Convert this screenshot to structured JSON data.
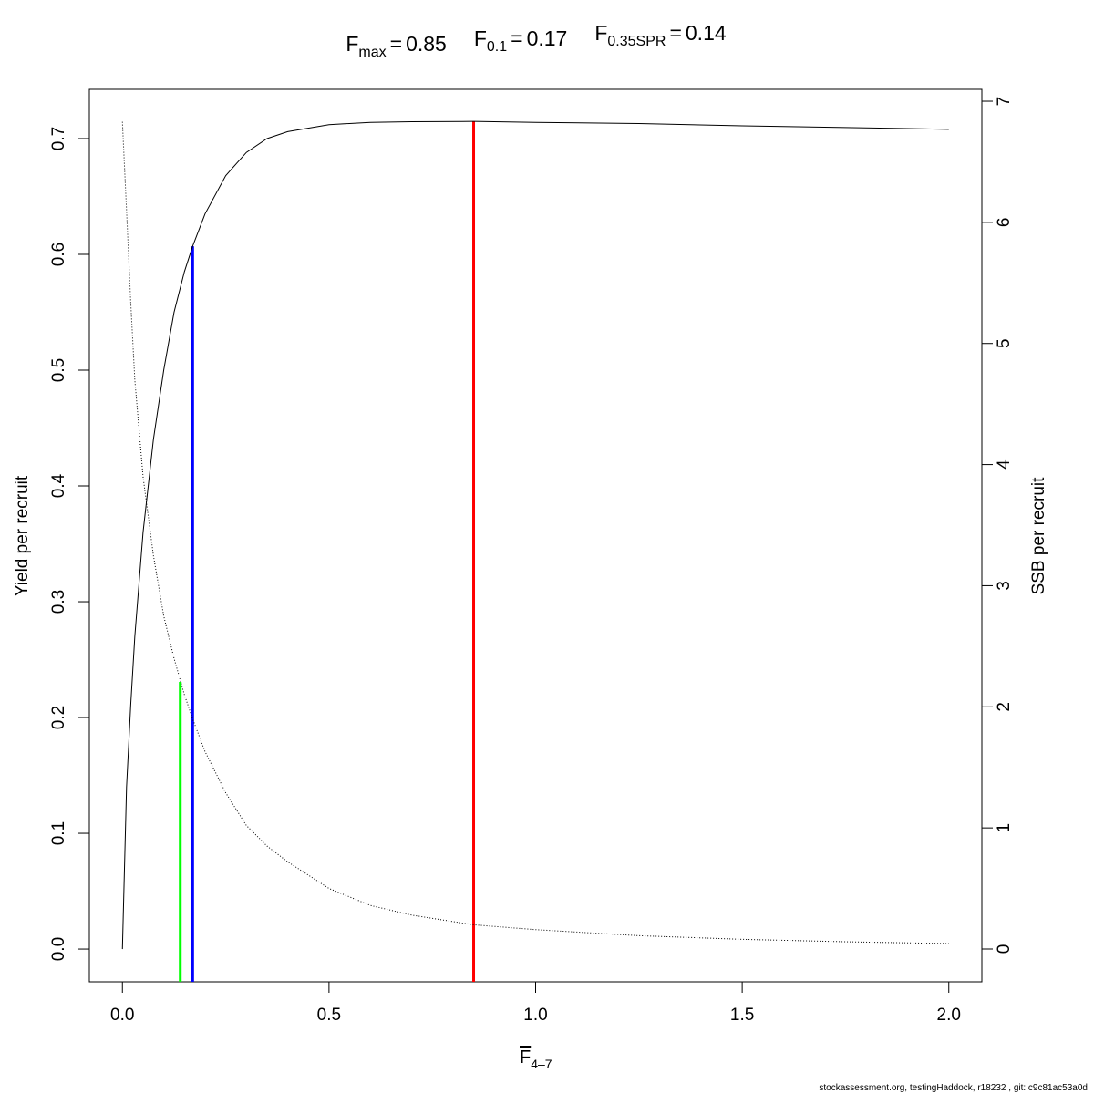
{
  "chart_data": {
    "type": "line",
    "title": [
      {
        "symbol": "F",
        "subscript": "max",
        "relation": "=",
        "value": 0.85,
        "y": 0.7148,
        "color": "#ff0000"
      },
      {
        "symbol": "F",
        "subscript": "0.1",
        "relation": "=",
        "value": 0.17,
        "y": 0.607,
        "color": "#0000ff"
      },
      {
        "symbol": "F",
        "subscript": "0.35SPR",
        "relation": "=",
        "value": 0.14,
        "y": 2.205,
        "axis": "y2",
        "color": "#00ff00"
      }
    ],
    "xlabel": {
      "text": "F",
      "subscript": "4–7"
    },
    "ylabel": "Yield per recruit",
    "y2label": "SSB per recruit",
    "footer": "stockassessment.org, testingHaddock, r18232 , git: c9c81ac53a0d",
    "x": [
      0,
      0.01,
      0.02,
      0.03,
      0.05,
      0.075,
      0.1,
      0.125,
      0.15,
      0.17,
      0.2,
      0.25,
      0.3,
      0.35,
      0.4,
      0.5,
      0.6,
      0.7,
      0.85,
      1.0,
      1.25,
      1.5,
      1.75,
      2.0
    ],
    "series": [
      {
        "color": "#000000",
        "line_style": "solid",
        "values": [
          0,
          0.14,
          0.21,
          0.27,
          0.36,
          0.44,
          0.5,
          0.55,
          0.585,
          0.607,
          0.635,
          0.668,
          0.688,
          0.7,
          0.706,
          0.712,
          0.714,
          0.7145,
          0.7148,
          0.714,
          0.713,
          0.711,
          0.7095,
          0.708
        ]
      },
      {
        "color": "#000000",
        "line_style": "dotted",
        "axis": "y2",
        "values": [
          6.83,
          6.1,
          5.35,
          4.7,
          3.9,
          3.25,
          2.75,
          2.4,
          2.1,
          1.9,
          1.63,
          1.29,
          1.02,
          0.85,
          0.72,
          0.5,
          0.36,
          0.28,
          0.2,
          0.16,
          0.11,
          0.08,
          0.06,
          0.045
        ]
      }
    ],
    "xlim": [
      -0.08,
      2.08
    ],
    "xticks": [
      {
        "value": 0,
        "label": "0.0"
      },
      0.5,
      {
        "value": 1,
        "label": "1.0"
      },
      1.5,
      {
        "value": 2,
        "label": "2.0"
      }
    ],
    "ylim": [
      -0.0283,
      0.7425
    ],
    "yticks": [
      {
        "value": 0,
        "label": "0.0"
      },
      0.1,
      0.2,
      0.3,
      0.4,
      0.5,
      0.6,
      0.7
    ],
    "y2lim": [
      -0.271,
      7.098
    ],
    "y2ticks": [
      0,
      1,
      2,
      3,
      4,
      5,
      6,
      7
    ],
    "grid": false
  }
}
